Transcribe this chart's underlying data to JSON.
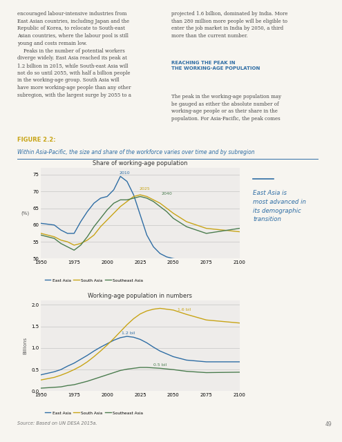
{
  "fig_label": "FIGURE 2.2:",
  "fig_subtitle": "Within Asia-Pacific, the size and share of the workforce varies over time and by subregion",
  "annotation_text": "East Asia is\nmost advanced in\nits demographic\ntransition",
  "source_text": "Source: Based on UN DESA 2015a.",
  "page_number": "49",
  "top_chart": {
    "title": "Share of working-age population",
    "ylabel": "(%)",
    "xlim": [
      1950,
      2100
    ],
    "ylim": [
      50,
      77
    ],
    "yticks": [
      50,
      55,
      60,
      65,
      70,
      75
    ],
    "xticks": [
      1950,
      1975,
      2000,
      2025,
      2050,
      2075,
      2100
    ],
    "east_asia": {
      "x": [
        1950,
        1960,
        1965,
        1970,
        1975,
        1980,
        1985,
        1990,
        1995,
        2000,
        2005,
        2010,
        2015,
        2020,
        2025,
        2030,
        2035,
        2040,
        2045,
        2050,
        2060,
        2075,
        2100
      ],
      "y": [
        60.5,
        60.0,
        58.5,
        57.5,
        57.5,
        61.0,
        64.0,
        66.5,
        68.0,
        68.5,
        70.5,
        74.5,
        73.0,
        69.0,
        63.0,
        57.0,
        53.5,
        51.5,
        50.5,
        50.0,
        49.5,
        49.0,
        48.5
      ],
      "color": "#2e6da4"
    },
    "south_asia": {
      "x": [
        1950,
        1960,
        1965,
        1970,
        1975,
        1980,
        1985,
        1990,
        1995,
        2000,
        2005,
        2010,
        2015,
        2020,
        2025,
        2030,
        2035,
        2040,
        2045,
        2050,
        2060,
        2075,
        2100
      ],
      "y": [
        57.5,
        56.5,
        55.5,
        55.0,
        54.0,
        54.5,
        55.5,
        57.0,
        59.5,
        61.5,
        63.5,
        65.5,
        67.0,
        68.5,
        69.0,
        68.5,
        67.5,
        66.5,
        65.0,
        63.5,
        61.0,
        59.0,
        58.0
      ],
      "color": "#c8a415"
    },
    "southeast_asia": {
      "x": [
        1950,
        1960,
        1965,
        1970,
        1975,
        1980,
        1985,
        1990,
        1995,
        2000,
        2005,
        2010,
        2015,
        2020,
        2025,
        2030,
        2035,
        2040,
        2045,
        2050,
        2060,
        2075,
        2100
      ],
      "y": [
        57.0,
        56.0,
        54.5,
        53.5,
        52.5,
        54.0,
        56.5,
        59.5,
        62.0,
        64.5,
        66.5,
        67.5,
        67.5,
        68.0,
        68.5,
        68.0,
        67.0,
        65.5,
        64.0,
        62.0,
        59.5,
        57.5,
        59.0
      ],
      "color": "#4a7c4e"
    }
  },
  "bottom_chart": {
    "title": "Working-age population in numbers",
    "ylabel": "Billions",
    "xlim": [
      1950,
      2100
    ],
    "ylim": [
      0.0,
      2.1
    ],
    "yticks": [
      0.0,
      0.5,
      1.0,
      1.5,
      2.0
    ],
    "xticks": [
      1950,
      1975,
      2000,
      2025,
      2050,
      2075,
      2100
    ],
    "east_asia": {
      "x": [
        1950,
        1960,
        1965,
        1970,
        1975,
        1980,
        1985,
        1990,
        1995,
        2000,
        2005,
        2010,
        2015,
        2020,
        2025,
        2030,
        2035,
        2040,
        2050,
        2060,
        2075,
        2100
      ],
      "y": [
        0.38,
        0.45,
        0.5,
        0.58,
        0.65,
        0.74,
        0.83,
        0.93,
        1.02,
        1.1,
        1.18,
        1.24,
        1.27,
        1.25,
        1.2,
        1.12,
        1.02,
        0.93,
        0.8,
        0.72,
        0.68,
        0.68
      ],
      "color": "#2e6da4"
    },
    "south_asia": {
      "x": [
        1950,
        1960,
        1965,
        1970,
        1975,
        1980,
        1985,
        1990,
        1995,
        2000,
        2005,
        2010,
        2015,
        2020,
        2025,
        2030,
        2035,
        2040,
        2050,
        2060,
        2075,
        2100
      ],
      "y": [
        0.26,
        0.32,
        0.37,
        0.43,
        0.5,
        0.58,
        0.68,
        0.8,
        0.93,
        1.07,
        1.22,
        1.38,
        1.54,
        1.68,
        1.79,
        1.86,
        1.9,
        1.92,
        1.88,
        1.78,
        1.65,
        1.58
      ],
      "color": "#c8a415"
    },
    "southeast_asia": {
      "x": [
        1950,
        1960,
        1965,
        1970,
        1975,
        1980,
        1985,
        1990,
        1995,
        2000,
        2005,
        2010,
        2015,
        2020,
        2025,
        2030,
        2035,
        2040,
        2050,
        2060,
        2075,
        2100
      ],
      "y": [
        0.07,
        0.09,
        0.1,
        0.13,
        0.15,
        0.19,
        0.23,
        0.28,
        0.33,
        0.38,
        0.43,
        0.48,
        0.51,
        0.53,
        0.55,
        0.55,
        0.54,
        0.53,
        0.5,
        0.46,
        0.43,
        0.44
      ],
      "color": "#4a7c4e"
    }
  },
  "colors": {
    "east_asia": "#2e6da4",
    "south_asia": "#c8a415",
    "southeast_asia": "#4a7c4e",
    "figure_label": "#c8a415",
    "subtitle": "#2e6da4",
    "annotation_color": "#2e6da4",
    "background": "#f7f5f0",
    "chart_bg": "#eeecea",
    "grid": "#cccccc",
    "text_body": "#444444",
    "text_light": "#777777"
  }
}
